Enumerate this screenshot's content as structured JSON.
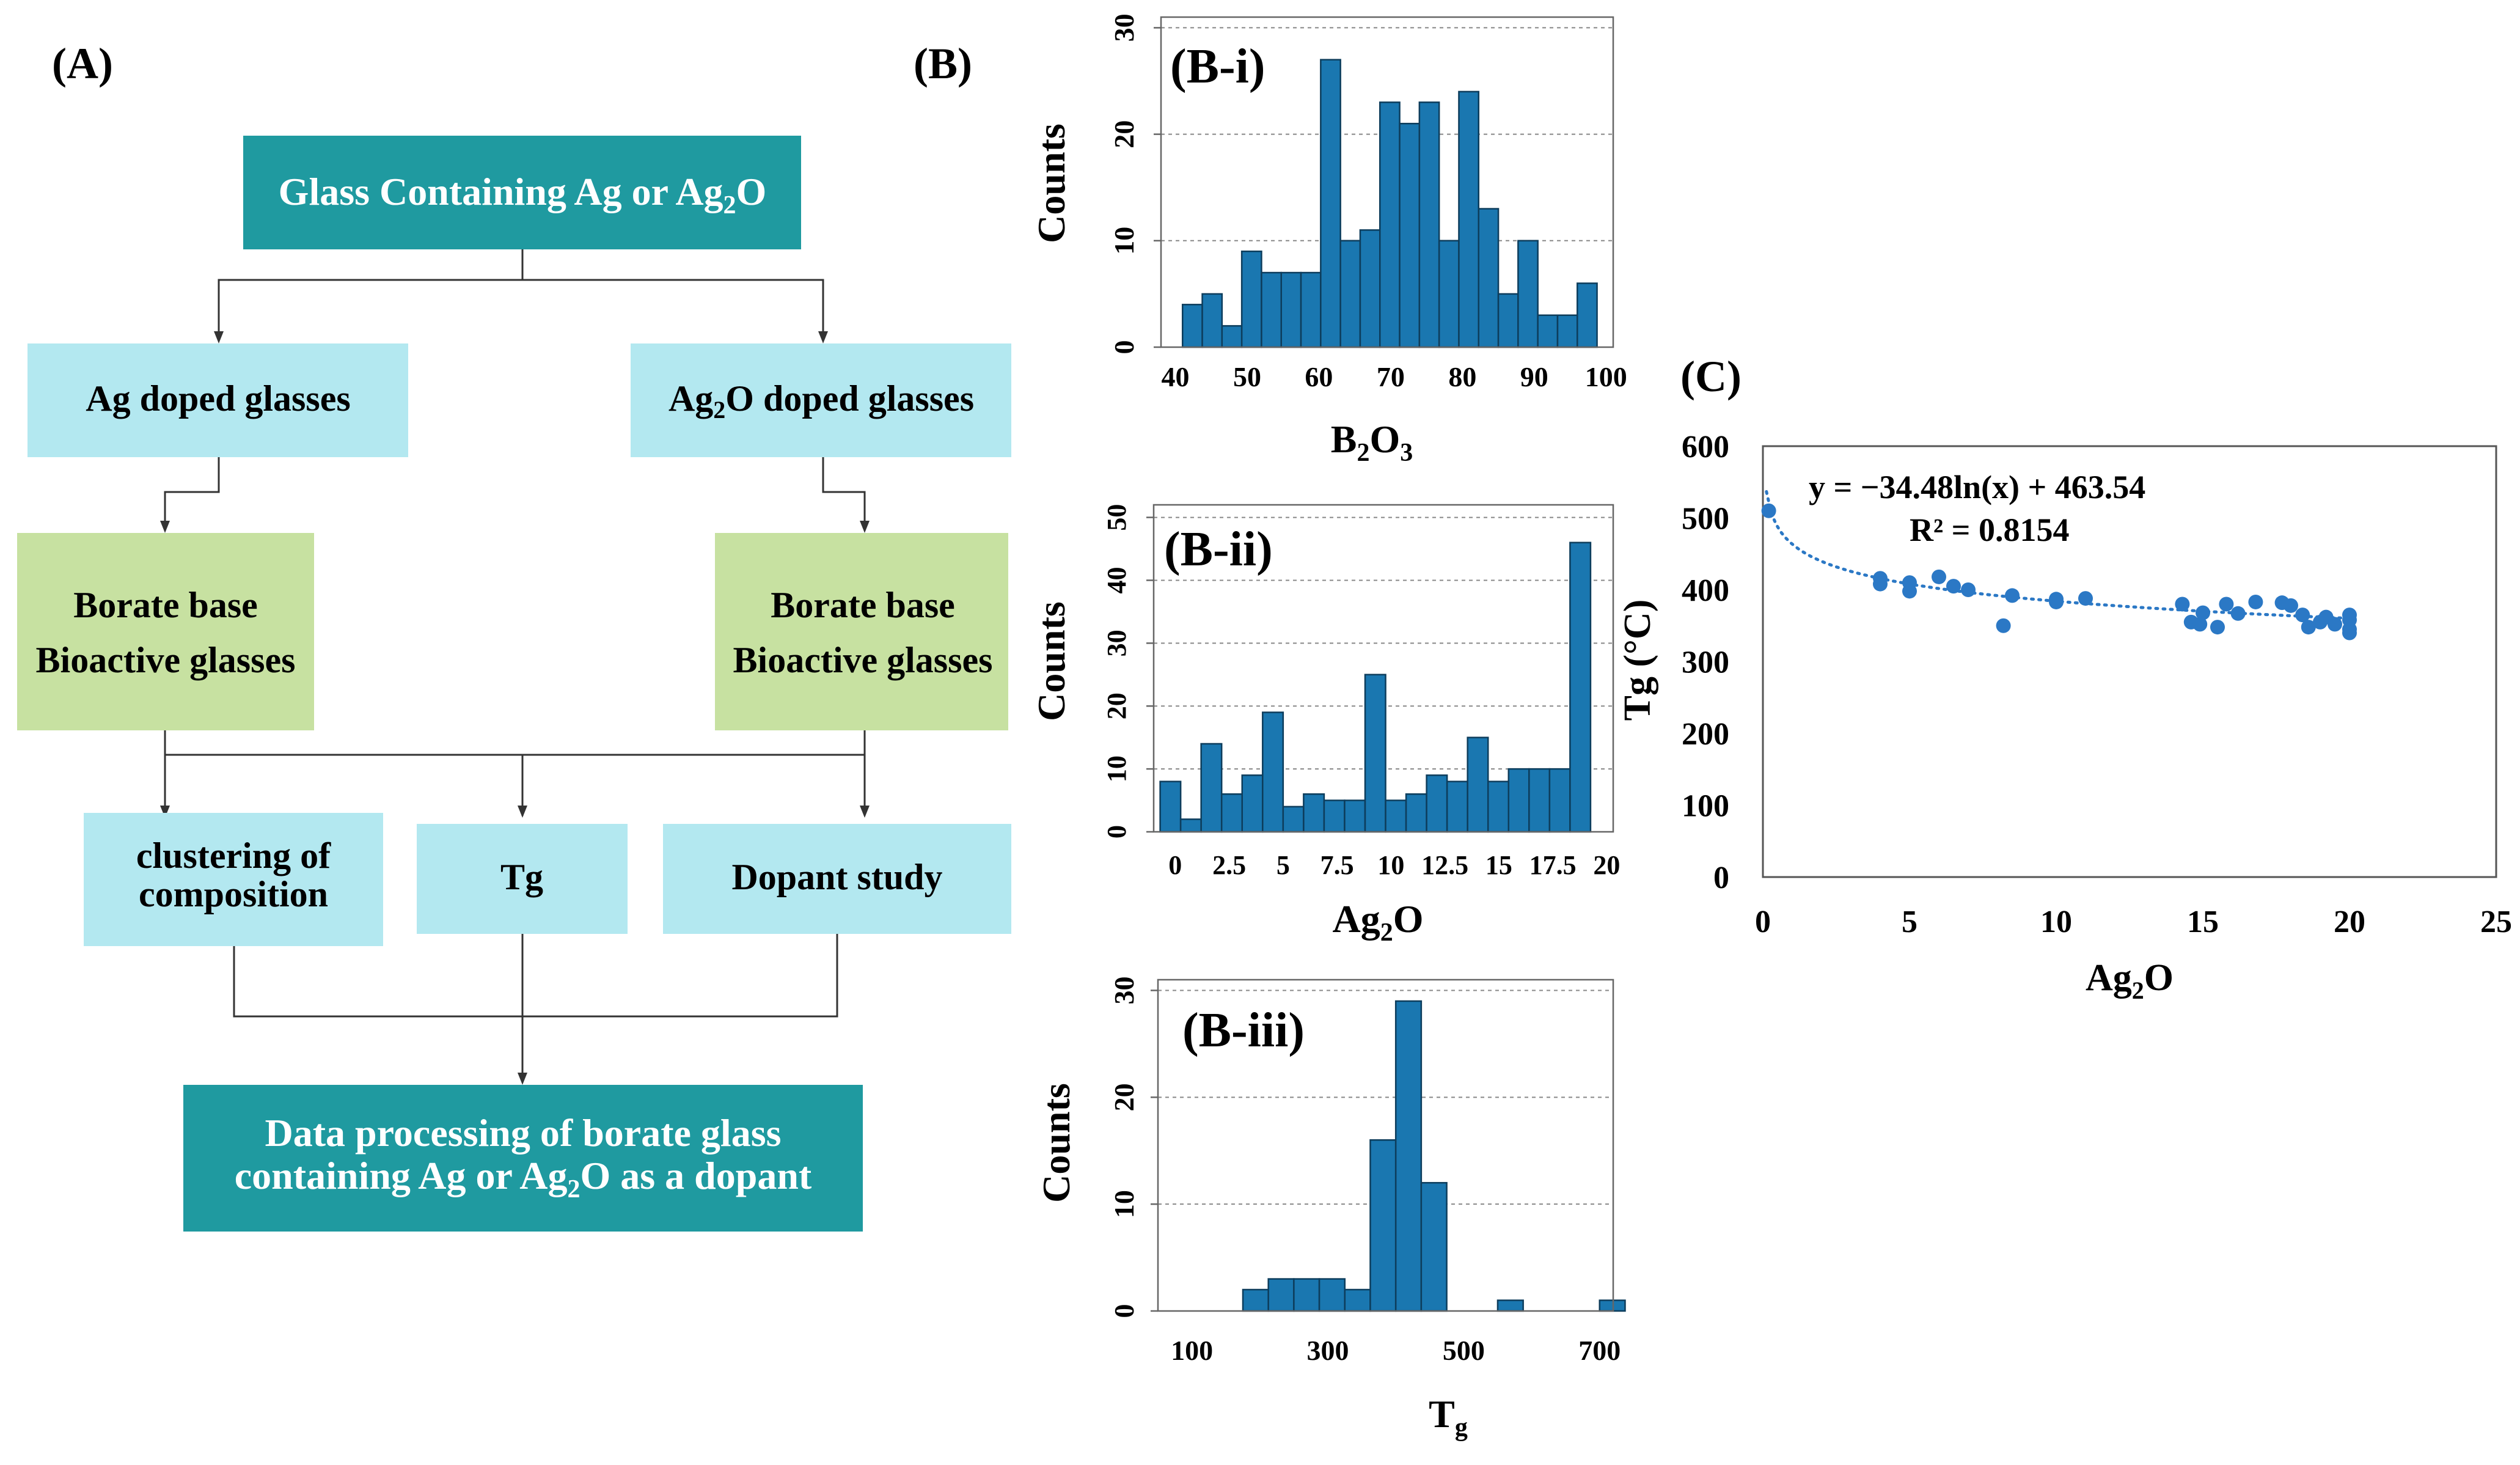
{
  "panels": {
    "A": "(A)",
    "B": "(B)",
    "C": "(C)"
  },
  "flowchart": {
    "top": {
      "pre": "Glass Containing Ag or Ag",
      "sub": "2",
      "post": "O"
    },
    "ag_doped": "Ag doped glasses",
    "ag2o_doped": {
      "pre": "Ag",
      "sub": "2",
      "post": "O doped glasses"
    },
    "borate_left": {
      "line1": "Borate base",
      "line2": "Bioactive glasses"
    },
    "borate_right": {
      "line1": "Borate base",
      "line2": "Bioactive glasses"
    },
    "clustering": {
      "line1": "clustering of",
      "line2": "composition"
    },
    "tg": "Tg",
    "dopant": "Dopant study",
    "bottom": {
      "line1": "Data processing of borate glass",
      "line2_pre": "containing Ag or Ag",
      "line2_sub": "2",
      "line2_post": "O as a dopant"
    },
    "colors": {
      "teal": "#1f9aa0",
      "light_blue": "#b3e8f0",
      "light_green": "#c7e1a1"
    }
  },
  "chart_data": [
    {
      "id": "B-i",
      "type": "bar",
      "label": "(B-i)",
      "xlabel": {
        "pre": "B",
        "sub1": "2",
        "mid": "O",
        "sub2": "3"
      },
      "ylabel": "Counts",
      "bin_start": 41,
      "bin_width": 2.75,
      "values": [
        4,
        5,
        2,
        9,
        7,
        7,
        7,
        27,
        10,
        11,
        23,
        21,
        23,
        10,
        24,
        13,
        5,
        10,
        3,
        3,
        6
      ],
      "xlim": [
        38,
        101
      ],
      "ylim": [
        0,
        31
      ],
      "xticks": [
        40,
        50,
        60,
        70,
        80,
        90,
        100
      ],
      "yticks": [
        0,
        10,
        20,
        30
      ],
      "color": "#1a77b0"
    },
    {
      "id": "B-ii",
      "type": "bar",
      "label": "(B-ii)",
      "xlabel": {
        "pre": "Ag",
        "sub": "2",
        "post": "O"
      },
      "ylabel": "Counts",
      "bin_start": -0.7,
      "bin_width": 0.95,
      "values": [
        8,
        2,
        14,
        6,
        9,
        19,
        4,
        6,
        5,
        5,
        25,
        5,
        6,
        9,
        8,
        15,
        8,
        10,
        10,
        10,
        46
      ],
      "xlim": [
        -1,
        20.3
      ],
      "ylim": [
        0,
        52
      ],
      "xticks": [
        0,
        2.5,
        5,
        7.5,
        10,
        12.5,
        15,
        17.5,
        20
      ],
      "xtick_labels": [
        "0",
        "2.5",
        "5",
        "7.5",
        "10",
        "12.5",
        "15",
        "17.5",
        "20"
      ],
      "yticks": [
        0,
        10,
        20,
        30,
        40,
        50
      ],
      "color": "#1a77b0"
    },
    {
      "id": "B-iii",
      "type": "bar",
      "label": "(B-iii)",
      "xlabel": {
        "pre": "T",
        "sub": "g"
      },
      "ylabel": "Counts",
      "bin_start": 175,
      "bin_width": 37.5,
      "values": [
        2,
        3,
        3,
        3,
        2,
        16,
        29,
        12,
        0,
        0,
        1,
        0,
        0,
        0,
        1
      ],
      "xlim": [
        50,
        720
      ],
      "ylim": [
        0,
        31
      ],
      "xticks": [
        100,
        300,
        500,
        700
      ],
      "yticks": [
        0,
        10,
        20,
        30
      ],
      "color": "#1a77b0"
    },
    {
      "id": "C",
      "type": "scatter",
      "xlabel": {
        "pre": "Ag",
        "sub": "2",
        "post": "O"
      },
      "ylabel": "Tg (°C)",
      "equation": "y = −34.48ln(x) + 463.54",
      "r2": "R² = 0.8154",
      "fit": {
        "a": -34.48,
        "b": 463.54
      },
      "xlim": [
        0,
        25
      ],
      "ylim": [
        0,
        600
      ],
      "xticks": [
        0,
        5,
        10,
        15,
        20,
        25
      ],
      "yticks": [
        0,
        100,
        200,
        300,
        400,
        500,
        600
      ],
      "color": "#2b78c5",
      "points": [
        [
          0.2,
          510
        ],
        [
          4,
          416
        ],
        [
          4,
          408
        ],
        [
          5,
          410
        ],
        [
          5,
          398
        ],
        [
          6,
          418
        ],
        [
          6.5,
          405
        ],
        [
          7,
          400
        ],
        [
          8.2,
          350
        ],
        [
          8.5,
          392
        ],
        [
          10,
          387
        ],
        [
          10,
          383
        ],
        [
          11,
          388
        ],
        [
          14.3,
          380
        ],
        [
          14.6,
          355
        ],
        [
          14.9,
          352
        ],
        [
          15,
          368
        ],
        [
          15.5,
          348
        ],
        [
          15.8,
          380
        ],
        [
          16.2,
          367
        ],
        [
          16.8,
          383
        ],
        [
          17.7,
          382
        ],
        [
          18,
          378
        ],
        [
          18.4,
          365
        ],
        [
          18.6,
          348
        ],
        [
          19,
          355
        ],
        [
          19.2,
          362
        ],
        [
          19.5,
          352
        ],
        [
          20,
          365
        ],
        [
          20,
          358
        ],
        [
          20,
          345
        ],
        [
          20,
          340
        ]
      ]
    }
  ]
}
